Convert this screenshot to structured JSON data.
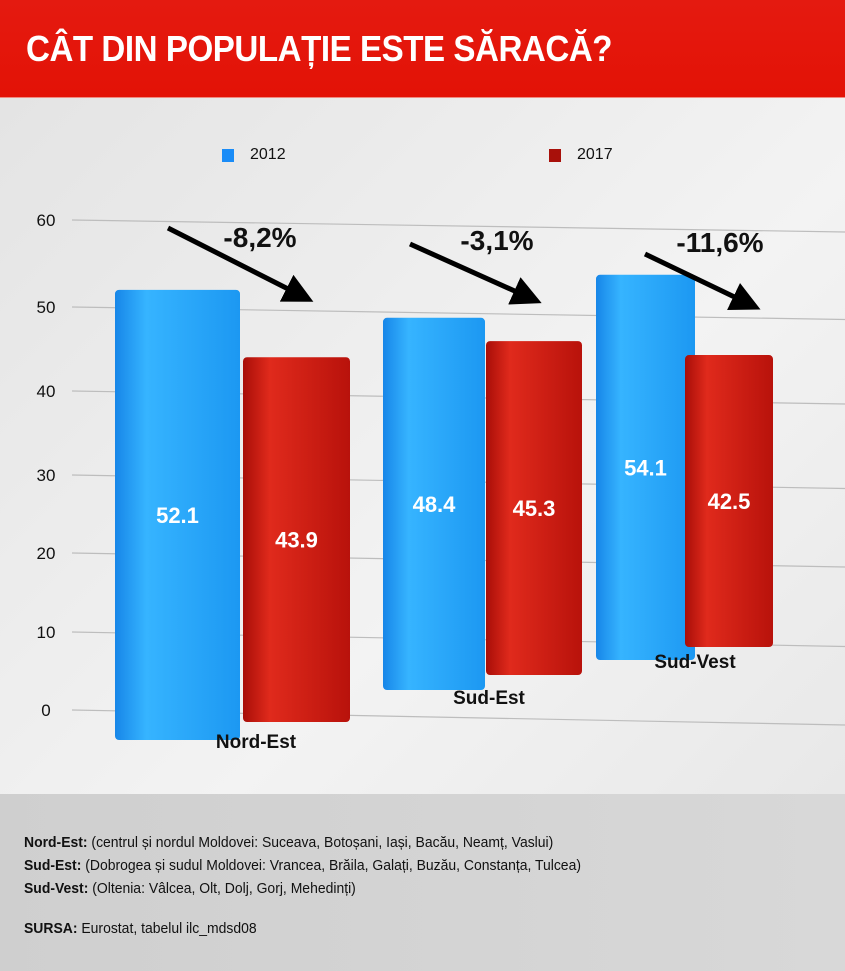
{
  "header": {
    "title": "CÂT DIN POPULAȚIE ESTE SĂRACĂ?"
  },
  "colors": {
    "header": "#e41a10",
    "s2012": "#1e9cf5",
    "s2017": "#c8140c"
  },
  "chart_data": {
    "type": "bar",
    "title": "CÂT DIN POPULAȚIE ESTE SĂRACĂ?",
    "categories": [
      "Nord-Est",
      "Sud-Est",
      "Sud-Vest"
    ],
    "series": [
      {
        "name": "2012",
        "values": [
          52.1,
          48.4,
          54.1
        ],
        "labels": [
          "52.1",
          "48.4",
          "54.1"
        ]
      },
      {
        "name": "2017",
        "values": [
          43.9,
          45.3,
          42.5
        ],
        "labels": [
          "43.9",
          "45.3",
          "42.5"
        ]
      }
    ],
    "annotations": [
      "-8,2%",
      "-3,1%",
      "-11,6%"
    ],
    "yticks": [
      "0",
      "10",
      "20",
      "30",
      "40",
      "50",
      "60"
    ],
    "ylim": [
      0,
      60
    ],
    "legend": "top",
    "grid": true,
    "xlabel": "",
    "ylabel": ""
  },
  "footer": {
    "notes": [
      {
        "key": "Nord-Est:",
        "text": " (centrul și nordul Moldovei: Suceava, Botoșani, Iași, Bacău, Neamț, Vaslui)"
      },
      {
        "key": "Sud-Est:",
        "text": " (Dobrogea și sudul Moldovei: Vrancea, Brăila, Galați, Buzău, Constanța, Tulcea)"
      },
      {
        "key": "Sud-Vest:",
        "text": " (Oltenia: Vâlcea, Olt, Dolj, Gorj, Mehedinți)"
      }
    ],
    "source": {
      "key": "SURSA:",
      "text": " Eurostat, tabelul ilc_mdsd08"
    }
  }
}
